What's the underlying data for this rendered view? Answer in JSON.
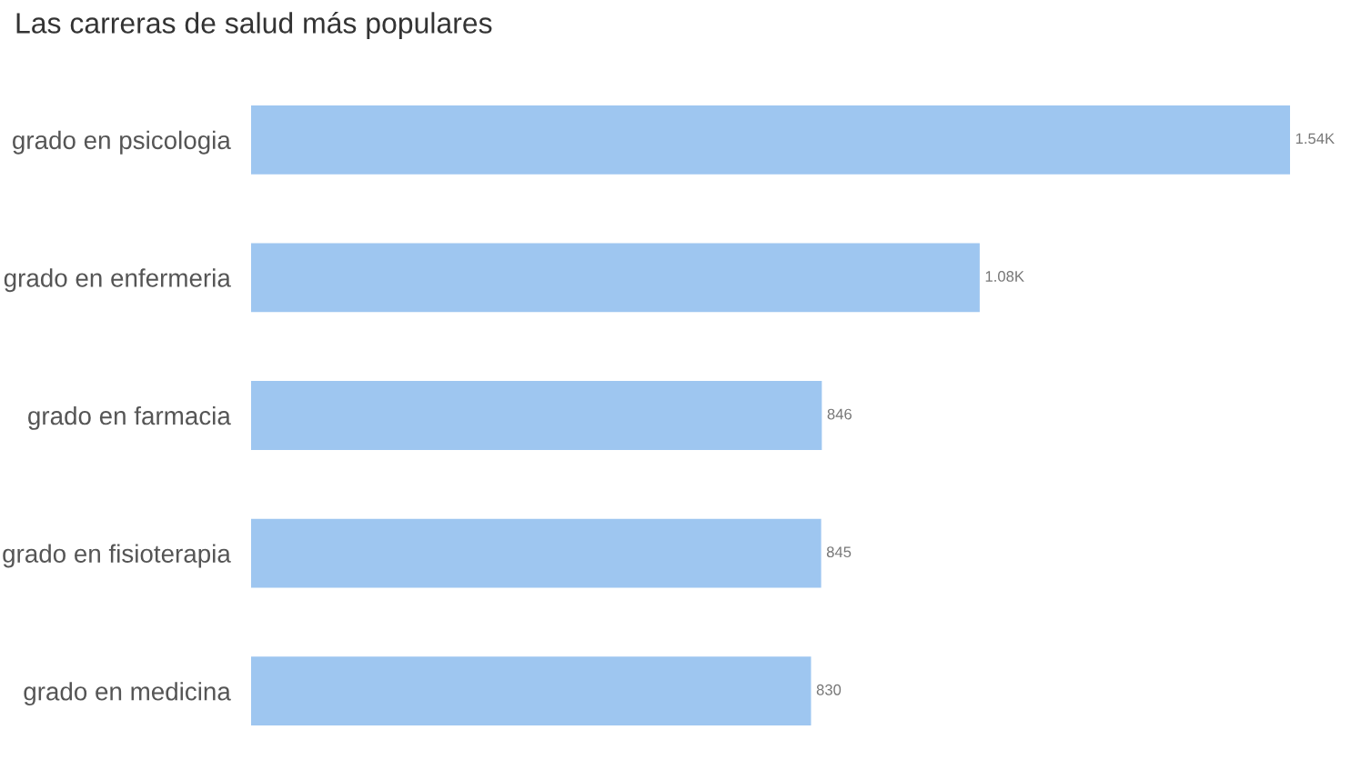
{
  "chart_data": {
    "type": "bar",
    "orientation": "horizontal",
    "title": "Las carreras de salud más populares",
    "categories": [
      "grado en psicologia",
      "grado en enfermeria",
      "grado en farmacia",
      "grado en fisioterapia",
      "grado en medicina"
    ],
    "values": [
      1540,
      1080,
      846,
      845,
      830
    ],
    "color": "#9ec6f0",
    "value_labels": [
      "1.54K",
      "1.08K",
      "846",
      "845",
      "830"
    ]
  }
}
